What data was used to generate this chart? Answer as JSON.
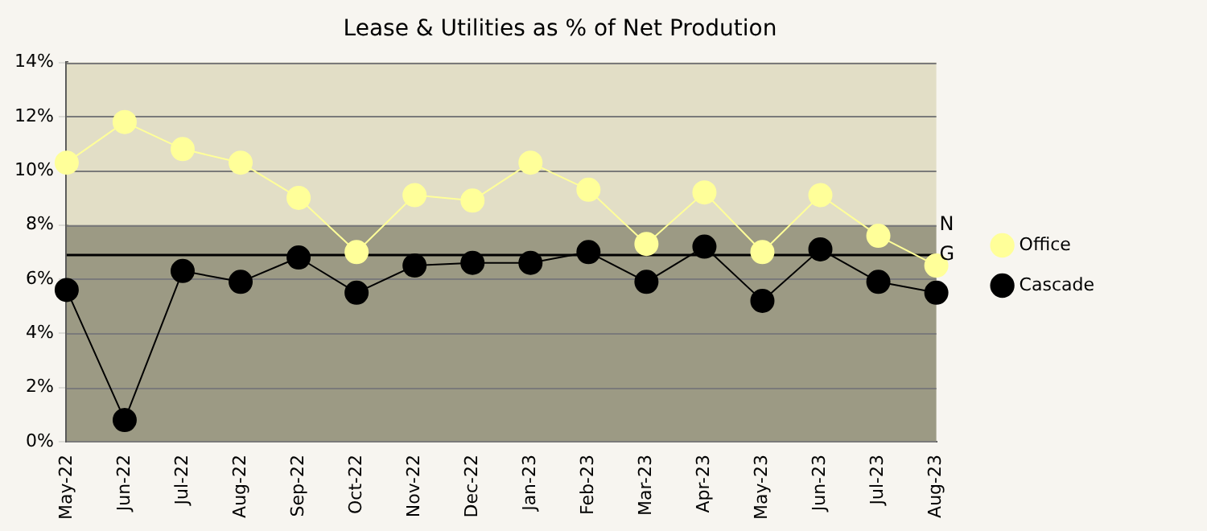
{
  "chart_data": {
    "type": "line",
    "title": "Lease & Utilities as % of Net Prodution",
    "categories": [
      "May-22",
      "Jun-22",
      "Jul-22",
      "Aug-22",
      "Sep-22",
      "Oct-22",
      "Nov-22",
      "Dec-22",
      "Jan-23",
      "Feb-23",
      "Mar-23",
      "Apr-23",
      "May-23",
      "Jun-23",
      "Jul-23",
      "Aug-23"
    ],
    "series": [
      {
        "name": "Office",
        "color": "#ffff99",
        "values": [
          10.3,
          11.8,
          10.8,
          10.3,
          9.0,
          7.0,
          9.1,
          8.9,
          10.3,
          9.3,
          7.3,
          9.2,
          7.0,
          9.1,
          7.6,
          6.5
        ]
      },
      {
        "name": "Cascade",
        "color": "#000000",
        "values": [
          5.6,
          0.8,
          6.3,
          5.9,
          6.8,
          5.5,
          6.5,
          6.6,
          6.6,
          7.0,
          5.9,
          7.2,
          5.2,
          7.1,
          5.9,
          5.5
        ]
      }
    ],
    "ylim": [
      0,
      14
    ],
    "yticks": [
      {
        "value": 0,
        "label": "0%"
      },
      {
        "value": 2,
        "label": "2%"
      },
      {
        "value": 4,
        "label": "4%"
      },
      {
        "value": 6,
        "label": "6%"
      },
      {
        "value": 8,
        "label": "8%"
      },
      {
        "value": 10,
        "label": "10%"
      },
      {
        "value": 12,
        "label": "12%"
      },
      {
        "value": 14,
        "label": "14%"
      }
    ],
    "bands": [
      {
        "axis": "y",
        "from": 8,
        "to": 14,
        "color": "#e2dec6"
      },
      {
        "axis": "y",
        "from": 0,
        "to": 8,
        "color": "#9c9a84",
        "label": "N"
      }
    ],
    "ref_lines": [
      {
        "axis": "y",
        "value": 6.9,
        "label": "G",
        "color": "#000000"
      }
    ],
    "grid": "y",
    "legend": "right",
    "marker": "circle",
    "line_style": "solid"
  }
}
